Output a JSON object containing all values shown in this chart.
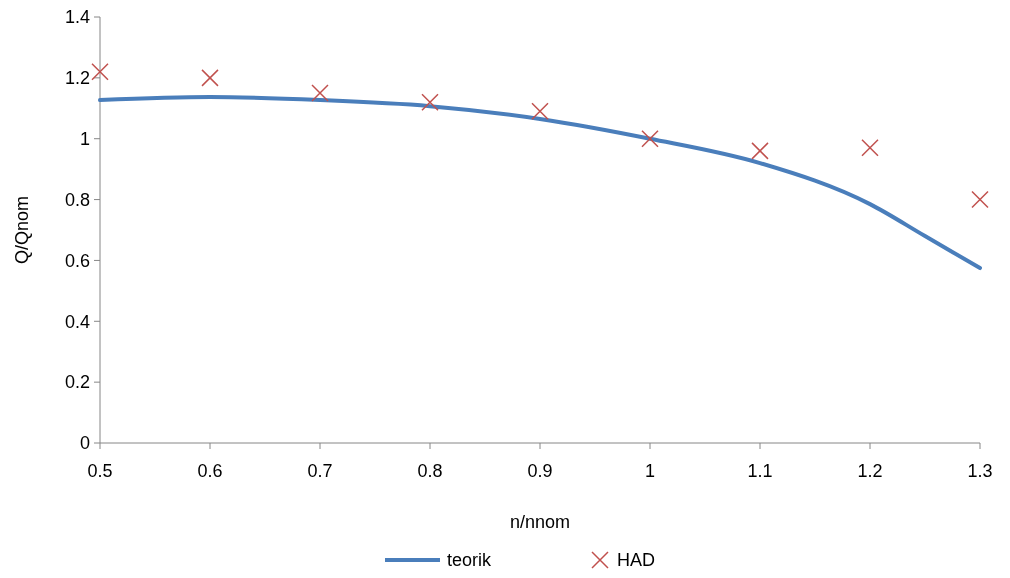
{
  "chart_data": {
    "type": "line",
    "xlabel": "n/nnom",
    "ylabel": "Q/Qnom",
    "x": [
      0.5,
      0.6,
      0.7,
      0.8,
      0.9,
      1.0,
      1.1,
      1.2,
      1.25,
      1.3
    ],
    "series": [
      {
        "name": "teorik",
        "color": "#4a7ebb",
        "marker": "none",
        "values": [
          1.127,
          1.137,
          1.127,
          1.107,
          1.065,
          1.0,
          0.92,
          0.785,
          0.68,
          0.575
        ]
      },
      {
        "name": "HAD",
        "type": "scatter",
        "color": "#c0504d",
        "marker": "cross",
        "x": [
          0.5,
          0.6,
          0.7,
          0.8,
          0.9,
          1.0,
          1.1,
          1.2,
          1.3
        ],
        "values": [
          1.22,
          1.2,
          1.15,
          1.12,
          1.09,
          1.0,
          0.96,
          0.97,
          0.8
        ]
      }
    ],
    "xlim": [
      0.5,
      1.3
    ],
    "xticks": [
      0.5,
      0.6,
      0.7,
      0.8,
      0.9,
      1,
      1.1,
      1.2,
      1.3
    ],
    "ylim": [
      0,
      1.4
    ],
    "yticks": [
      0,
      0.2,
      0.4,
      0.6,
      0.8,
      1,
      1.2,
      1.4
    ],
    "grid": false,
    "legend": "bottom"
  }
}
